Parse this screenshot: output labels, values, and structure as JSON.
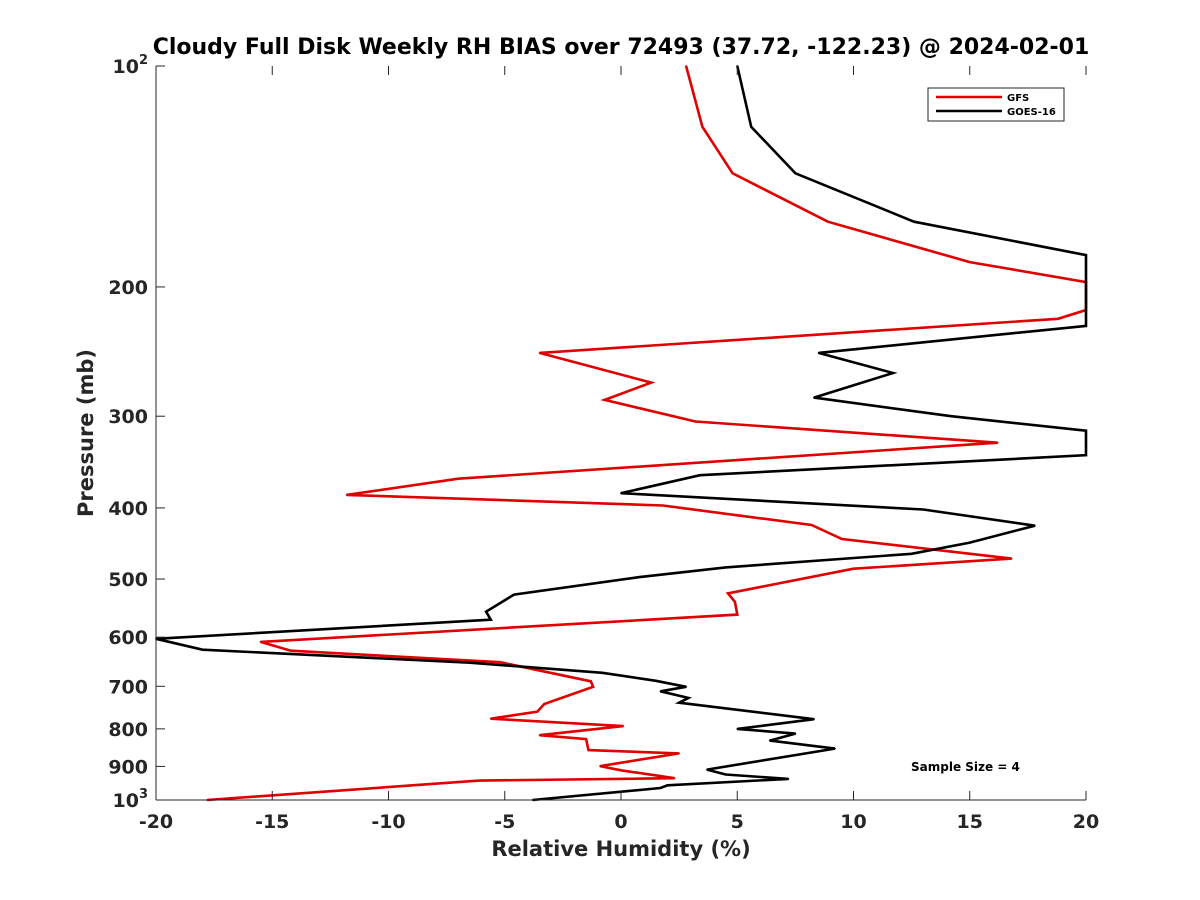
{
  "chart_data": {
    "type": "line",
    "title": "Cloudy Full Disk Weekly RH BIAS over 72493 (37.72, -122.23) @ 2024-02-01",
    "xlabel": "Relative Humidity (%)",
    "ylabel": "Pressure (mb)",
    "xlim": [
      -20,
      20
    ],
    "ylim": [
      100,
      1000
    ],
    "y_scale": "log",
    "y_reversed": true,
    "x_ticks": [
      {
        "value": -20,
        "label": "-20"
      },
      {
        "value": -15,
        "label": "-15"
      },
      {
        "value": -10,
        "label": "-10"
      },
      {
        "value": -5,
        "label": "-5"
      },
      {
        "value": 0,
        "label": "0"
      },
      {
        "value": 5,
        "label": "5"
      },
      {
        "value": 10,
        "label": "10"
      },
      {
        "value": 15,
        "label": "15"
      },
      {
        "value": 20,
        "label": "20"
      }
    ],
    "y_ticks": [
      {
        "value": 100,
        "label": "10",
        "sup": "2"
      },
      {
        "value": 200,
        "label": "200",
        "sup": ""
      },
      {
        "value": 300,
        "label": "300",
        "sup": ""
      },
      {
        "value": 400,
        "label": "400",
        "sup": ""
      },
      {
        "value": 500,
        "label": "500",
        "sup": ""
      },
      {
        "value": 600,
        "label": "600",
        "sup": ""
      },
      {
        "value": 700,
        "label": "700",
        "sup": ""
      },
      {
        "value": 800,
        "label": "800",
        "sup": ""
      },
      {
        "value": 900,
        "label": "900",
        "sup": ""
      },
      {
        "value": 1000,
        "label": "10",
        "sup": "3"
      }
    ],
    "grid": false,
    "legend_position": "top-right",
    "annotation": "Sample Size = 4",
    "series": [
      {
        "name": "GFS",
        "color": "#e00000",
        "points": [
          [
            2.8,
            100
          ],
          [
            3.5,
            121
          ],
          [
            4.8,
            140
          ],
          [
            8.9,
            163
          ],
          [
            15,
            185
          ],
          [
            20,
            197
          ],
          [
            20,
            215
          ],
          [
            18.8,
            221
          ],
          [
            -3.5,
            246
          ],
          [
            1.3,
            270
          ],
          [
            -0.7,
            285
          ],
          [
            3.2,
            305
          ],
          [
            16.2,
            326
          ],
          [
            -7,
            365
          ],
          [
            -11.8,
            384
          ],
          [
            1.8,
            397
          ],
          [
            8.2,
            422
          ],
          [
            9.5,
            441
          ],
          [
            16.8,
            469
          ],
          [
            10,
            484
          ],
          [
            4.6,
            523
          ],
          [
            4.9,
            537
          ],
          [
            5,
            559
          ],
          [
            -15.5,
            609
          ],
          [
            -14.2,
            626
          ],
          [
            -5.2,
            649
          ],
          [
            -1.3,
            689
          ],
          [
            -1.2,
            701
          ],
          [
            -3.3,
            740
          ],
          [
            -3.6,
            758
          ],
          [
            -5.6,
            775
          ],
          [
            0.1,
            793
          ],
          [
            -3.5,
            816
          ],
          [
            -1.5,
            826
          ],
          [
            -1.4,
            855
          ],
          [
            2.5,
            864
          ],
          [
            -0.9,
            899
          ],
          [
            0,
            911
          ],
          [
            2.3,
            934
          ],
          [
            -6.1,
            941
          ],
          [
            -17.8,
            1000
          ]
        ]
      },
      {
        "name": "GOES-16",
        "color": "#000000",
        "points": [
          [
            5,
            100
          ],
          [
            5.6,
            121
          ],
          [
            7.5,
            140
          ],
          [
            12.6,
            163
          ],
          [
            20,
            181
          ],
          [
            20,
            226
          ],
          [
            8.5,
            246
          ],
          [
            11.7,
            262
          ],
          [
            8.3,
            283
          ],
          [
            14.2,
            300
          ],
          [
            20,
            314
          ],
          [
            20,
            339
          ],
          [
            3.4,
            361
          ],
          [
            0,
            382
          ],
          [
            13,
            402
          ],
          [
            17.8,
            423
          ],
          [
            15,
            446
          ],
          [
            12.5,
            462
          ],
          [
            4.5,
            482
          ],
          [
            0.8,
            497
          ],
          [
            -4.6,
            525
          ],
          [
            -5.8,
            554
          ],
          [
            -5.6,
            568
          ],
          [
            -20,
            603
          ],
          [
            -18,
            624
          ],
          [
            -6.5,
            650
          ],
          [
            -0.8,
            671
          ],
          [
            1.5,
            688
          ],
          [
            2.8,
            701
          ],
          [
            1.7,
            711
          ],
          [
            2.9,
            726
          ],
          [
            2.5,
            737
          ],
          [
            8.3,
            776
          ],
          [
            5,
            800
          ],
          [
            7.5,
            812
          ],
          [
            6.4,
            830
          ],
          [
            9.2,
            851
          ],
          [
            3.7,
            909
          ],
          [
            4.5,
            923
          ],
          [
            7.2,
            936
          ],
          [
            2,
            955
          ],
          [
            1.7,
            963
          ],
          [
            -3.8,
            1000
          ]
        ]
      }
    ]
  }
}
